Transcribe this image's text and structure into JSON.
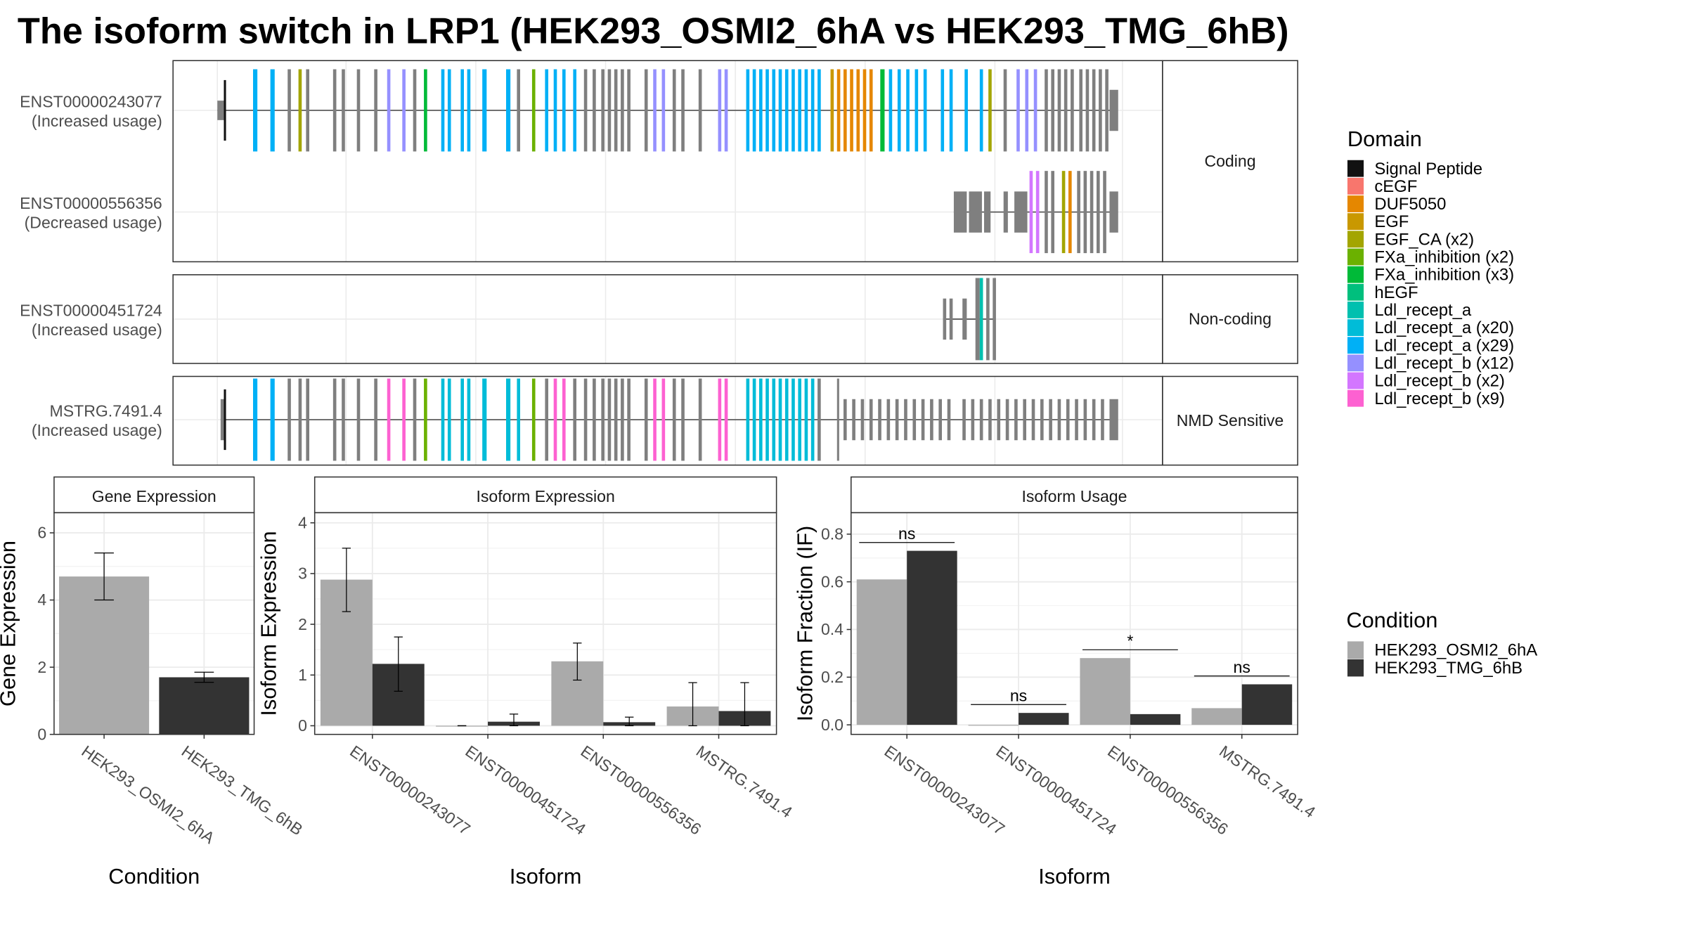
{
  "title": "The isoform switch in LRP1 (HEK293_OSMI2_6hA vs HEK293_TMG_6hB)",
  "colors": {
    "gray_exon": "#7f7f7f",
    "cond_a": "#aaaaaa",
    "cond_b": "#333333",
    "grid": "#ebebeb",
    "frame": "#333333",
    "strip_bg": "#ffffff"
  },
  "transcript_panel": {
    "groups": [
      {
        "label": "Coding",
        "transcripts": [
          {
            "id": "ENST00000243077",
            "note": "(Increased usage)"
          },
          {
            "id": "ENST00000556356",
            "note": "(Decreased usage)"
          }
        ]
      },
      {
        "label": "Non-coding",
        "transcripts": [
          {
            "id": "ENST00000451724",
            "note": "(Increased usage)"
          }
        ]
      },
      {
        "label": "NMD Sensitive",
        "transcripts": [
          {
            "id": "MSTRG.7491.4",
            "note": "(Increased usage)"
          }
        ]
      }
    ]
  },
  "domain_legend": {
    "title": "Domain",
    "items": [
      {
        "label": "Signal Peptide",
        "color": "#111111"
      },
      {
        "label": "cEGF",
        "color": "#f8766d"
      },
      {
        "label": "DUF5050",
        "color": "#e58700"
      },
      {
        "label": "EGF",
        "color": "#c99800"
      },
      {
        "label": "EGF_CA (x2)",
        "color": "#a3a500"
      },
      {
        "label": "FXa_inhibition (x2)",
        "color": "#6bb100"
      },
      {
        "label": "FXa_inhibition (x3)",
        "color": "#00ba38"
      },
      {
        "label": "hEGF",
        "color": "#00bf7d"
      },
      {
        "label": "Ldl_recept_a",
        "color": "#00c0af"
      },
      {
        "label": "Ldl_recept_a (x20)",
        "color": "#00bcd8"
      },
      {
        "label": "Ldl_recept_a (x29)",
        "color": "#00b0f6"
      },
      {
        "label": "Ldl_recept_b (x12)",
        "color": "#9590ff"
      },
      {
        "label": "Ldl_recept_b (x2)",
        "color": "#d376ff"
      },
      {
        "label": "Ldl_recept_b (x9)",
        "color": "#fd61d1"
      }
    ]
  },
  "condition_legend": {
    "title": "Condition",
    "items": [
      {
        "label": "HEK293_OSMI2_6hA",
        "color": "#aaaaaa"
      },
      {
        "label": "HEK293_TMG_6hB",
        "color": "#333333"
      }
    ]
  },
  "chart_data": [
    {
      "type": "bar",
      "title": "Gene Expression",
      "xlabel": "Condition",
      "ylabel": "Gene Expression",
      "ylim": [
        0,
        6.6
      ],
      "yticks": [
        0,
        2,
        4,
        6
      ],
      "tick_labels": [
        "0",
        "2",
        "4",
        "6"
      ],
      "categories": [
        "HEK293_OSMI2_6hA",
        "HEK293_TMG_6hB"
      ],
      "values": [
        4.7,
        1.7
      ],
      "error_low": [
        4.0,
        1.55
      ],
      "error_high": [
        5.4,
        1.85
      ],
      "colors": [
        "#aaaaaa",
        "#333333"
      ]
    },
    {
      "type": "bar",
      "title": "Isoform Expression",
      "xlabel": "Isoform",
      "ylabel": "Isoform Expression",
      "ylim": [
        -0.17,
        4.2
      ],
      "yticks": [
        0,
        1,
        2,
        3,
        4
      ],
      "tick_labels": [
        "0",
        "1",
        "2",
        "3",
        "4"
      ],
      "categories": [
        "ENST00000243077",
        "ENST00000451724",
        "ENST00000556356",
        "MSTRG.7491.4"
      ],
      "series": [
        {
          "name": "HEK293_OSMI2_6hA",
          "values": [
            2.88,
            0.0,
            1.27,
            0.38
          ],
          "error_low": [
            2.25,
            0.0,
            0.9,
            0.0
          ],
          "error_high": [
            3.5,
            0.0,
            1.63,
            0.85
          ]
        },
        {
          "name": "HEK293_TMG_6hB",
          "values": [
            1.22,
            0.08,
            0.07,
            0.29
          ],
          "error_low": [
            0.68,
            0.0,
            0.0,
            0.0
          ],
          "error_high": [
            1.75,
            0.23,
            0.17,
            0.85
          ]
        }
      ]
    },
    {
      "type": "bar",
      "title": "Isoform Usage",
      "xlabel": "Isoform",
      "ylabel": "Isoform Fraction (IF)",
      "ylim": [
        -0.04,
        0.89
      ],
      "yticks": [
        0,
        0.2,
        0.4,
        0.6,
        0.8
      ],
      "tick_labels": [
        "0.0",
        "0.2",
        "0.4",
        "0.6",
        "0.8"
      ],
      "categories": [
        "ENST00000243077",
        "ENST00000451724",
        "ENST00000556356",
        "MSTRG.7491.4"
      ],
      "series": [
        {
          "name": "HEK293_OSMI2_6hA",
          "values": [
            0.61,
            0.0,
            0.28,
            0.07
          ]
        },
        {
          "name": "HEK293_TMG_6hB",
          "values": [
            0.73,
            0.05,
            0.045,
            0.17
          ]
        }
      ],
      "significance": [
        "ns",
        "ns",
        "*",
        "ns"
      ]
    }
  ]
}
